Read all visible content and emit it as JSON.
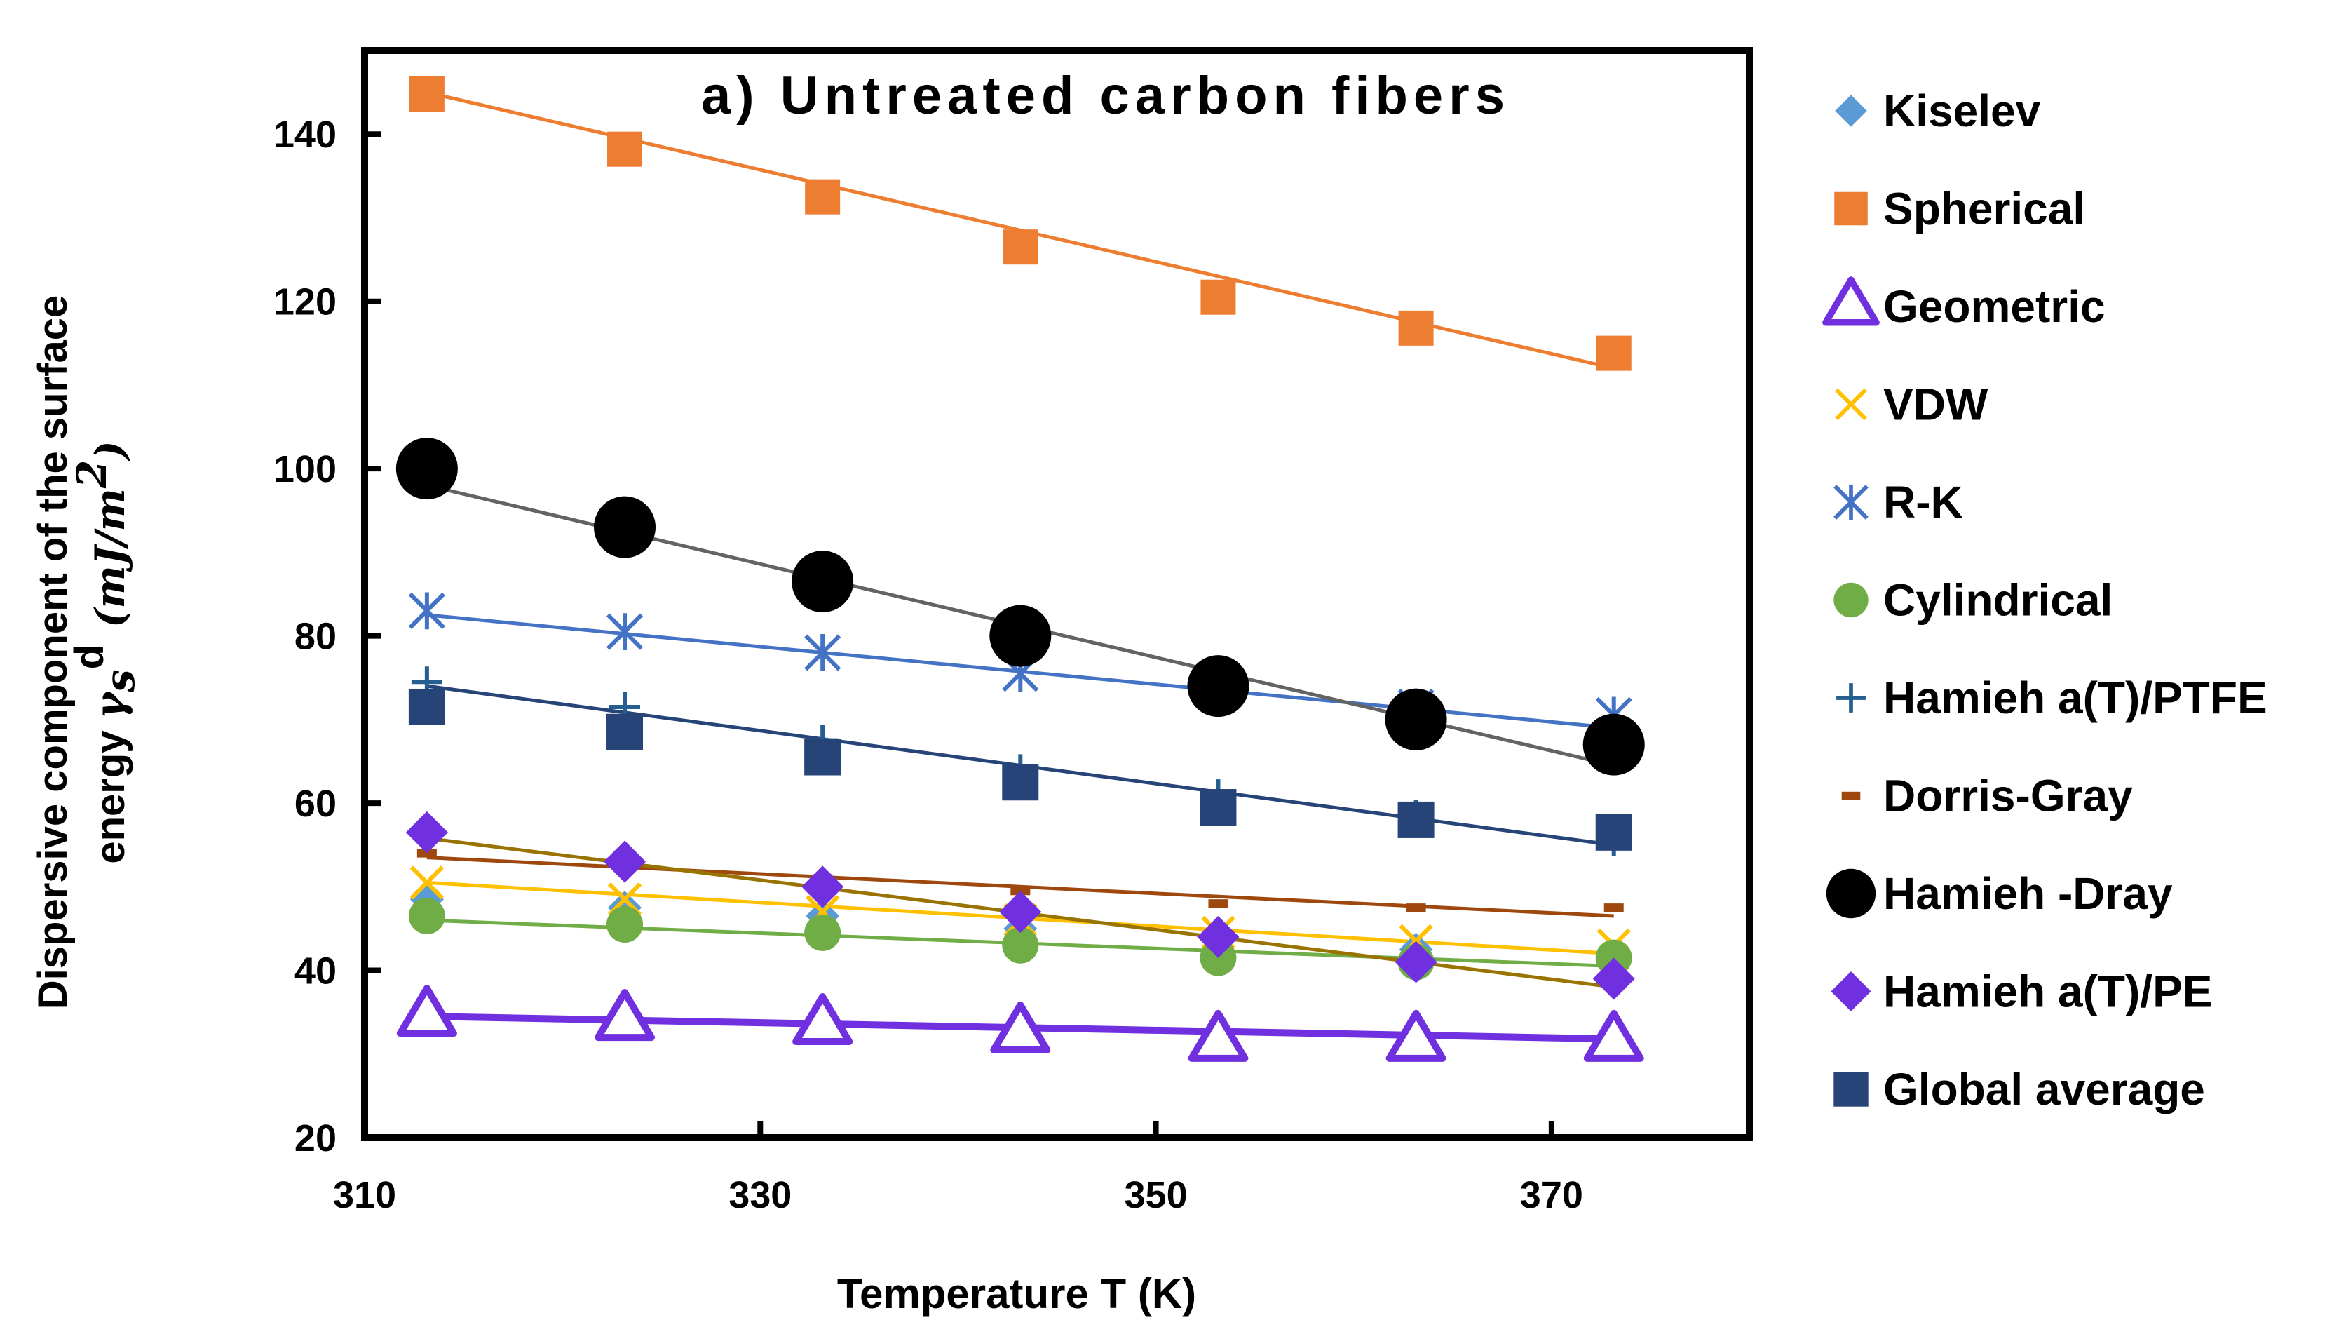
{
  "chart_data": {
    "type": "scatter",
    "title": "a) Untreated carbon fibers",
    "xlabel": "Temperature T (K)",
    "ylabel_line1": "Dispersive component of the surface",
    "ylabel_line2_prefix": "energy ",
    "ylabel_symbol": "γ",
    "ylabel_sub": "s",
    "ylabel_sup": "d",
    "ylabel_unit": "(mJ/m",
    "ylabel_unit_sup": "2",
    "ylabel_unit_close": ")",
    "xlim": [
      310,
      380
    ],
    "ylim": [
      20,
      150
    ],
    "xticks": [
      310,
      330,
      350,
      370
    ],
    "yticks": [
      20,
      40,
      60,
      80,
      100,
      120,
      140
    ],
    "x": [
      313.15,
      323.15,
      333.15,
      343.15,
      353.15,
      363.15,
      373.15
    ],
    "series": [
      {
        "name": "Kiselev",
        "marker": "diamond",
        "color": "#5B9BD5",
        "values": [
          48.5,
          47.5,
          46.5,
          45.0,
          43.5,
          42.5,
          41.5
        ],
        "trend": false
      },
      {
        "name": "Spherical",
        "marker": "square",
        "color": "#ED7D31",
        "values": [
          144.8,
          138.2,
          132.5,
          126.5,
          120.5,
          116.8,
          113.8
        ],
        "trend": true,
        "trend_color": "#ED7D31",
        "trend_start": 145.0,
        "trend_end": 112.0
      },
      {
        "name": "Geometric",
        "marker": "triangle-open",
        "color": "#7030E0",
        "values": [
          34.5,
          34.0,
          33.5,
          32.5,
          31.5,
          31.5,
          31.5
        ],
        "trend": true,
        "trend_color": "#7030E0",
        "trend_start": 34.5,
        "trend_end": 31.8,
        "trend_width": 10
      },
      {
        "name": "VDW",
        "marker": "x",
        "color": "#FFC000",
        "values": [
          50.5,
          48.5,
          47.0,
          46.0,
          44.5,
          43.5,
          43.0
        ],
        "trend": true,
        "trend_color": "#FFC000",
        "trend_start": 50.5,
        "trend_end": 42.0
      },
      {
        "name": "R-K",
        "marker": "asterisk",
        "color": "#4472C4",
        "values": [
          83.0,
          80.5,
          78.0,
          75.5,
          73.0,
          71.5,
          70.5
        ],
        "trend": true,
        "trend_color": "#4472C4",
        "trend_start": 82.5,
        "trend_end": 69.0
      },
      {
        "name": "Cylindrical",
        "marker": "circle",
        "color": "#70AD47",
        "values": [
          46.5,
          45.5,
          44.5,
          43.0,
          41.5,
          41.0,
          41.5
        ],
        "trend": true,
        "trend_color": "#70AD47",
        "trend_start": 46.0,
        "trend_end": 40.5
      },
      {
        "name": "Hamieh a(T)/PTFE",
        "marker": "plus",
        "color": "#255E91",
        "values": [
          74.5,
          71.5,
          67.5,
          64.0,
          61.0,
          58.5,
          55.5
        ],
        "trend": false
      },
      {
        "name": "Dorris-Gray",
        "marker": "dash",
        "color": "#9E480E",
        "values": [
          54.0,
          52.5,
          51.0,
          49.5,
          48.0,
          47.5,
          47.5
        ],
        "trend": true,
        "trend_color": "#9E480E",
        "trend_start": 53.5,
        "trend_end": 46.5
      },
      {
        "name": "Hamieh -Dray",
        "marker": "circle-big",
        "color": "#000000",
        "values": [
          100.0,
          93.0,
          86.5,
          80.0,
          74.0,
          70.0,
          67.0
        ],
        "trend": true,
        "trend_color": "#636363",
        "trend_start": 98.0,
        "trend_end": 64.5
      },
      {
        "name": "Hamieh a(T)/PE",
        "marker": "diamond-big",
        "color": "#7030E0",
        "values": [
          56.5,
          53.0,
          50.0,
          47.0,
          44.0,
          41.0,
          39.0
        ],
        "trend": true,
        "trend_color": "#997300",
        "trend_start": 55.8,
        "trend_end": 38.0
      },
      {
        "name": "Global average",
        "marker": "square-dark",
        "color": "#264478",
        "values": [
          71.5,
          68.5,
          65.5,
          62.5,
          59.5,
          58.0,
          56.5
        ],
        "trend": true,
        "trend_color": "#264478",
        "trend_start": 74.0,
        "trend_end": 55.0
      }
    ]
  }
}
